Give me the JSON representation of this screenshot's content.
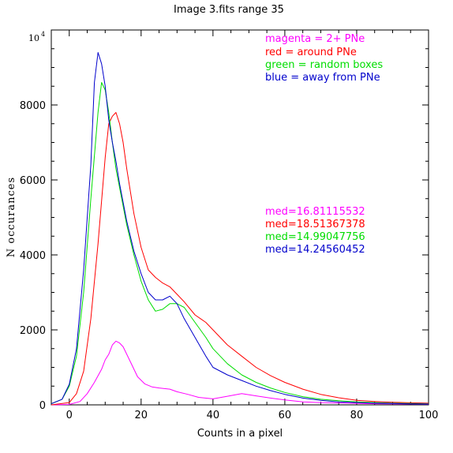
{
  "chart_data": {
    "type": "line",
    "title": "Image 3.fits    range 35",
    "xlabel": "Counts in a pixel",
    "ylabel": "N occurances",
    "xlim": [
      -5,
      100
    ],
    "ylim": [
      0,
      10000
    ],
    "y_exponent_label": "10",
    "y_exponent_power": "4",
    "x_ticks": [
      0,
      20,
      40,
      60,
      80,
      100
    ],
    "y_ticks": [
      0,
      2000,
      4000,
      6000,
      8000
    ],
    "grid": false,
    "legend_placement": "top-right",
    "legend": [
      {
        "text": "magenta = 2+ PNe",
        "color": "#ff00ff"
      },
      {
        "text": "red = around PNe",
        "color": "#ff0000"
      },
      {
        "text": "green = random boxes",
        "color": "#00dd00"
      },
      {
        "text": "blue = away from PNe",
        "color": "#0000cc"
      }
    ],
    "medians": [
      {
        "text": "med=16.81115532",
        "color": "#ff00ff"
      },
      {
        "text": "med=18.51367378",
        "color": "#ff0000"
      },
      {
        "text": "med=14.99047756",
        "color": "#00dd00"
      },
      {
        "text": "med=14.24560452",
        "color": "#0000cc"
      }
    ],
    "series": [
      {
        "color": "#ff00ff",
        "x": [
          -5,
          0,
          3,
          5,
          7,
          9,
          10,
          11,
          12,
          13,
          14,
          15,
          17,
          19,
          21,
          23,
          25,
          28,
          30,
          33,
          36,
          40,
          44,
          48,
          52,
          56,
          60,
          65,
          70,
          75,
          80,
          85,
          90,
          95,
          100
        ],
        "y": [
          0,
          10,
          90,
          300,
          600,
          950,
          1200,
          1350,
          1600,
          1700,
          1650,
          1550,
          1150,
          750,
          560,
          480,
          450,
          420,
          350,
          280,
          200,
          160,
          230,
          300,
          240,
          180,
          130,
          80,
          60,
          50,
          40,
          30,
          25,
          20,
          15
        ]
      },
      {
        "color": "#ff0000",
        "x": [
          -5,
          0,
          2,
          4,
          6,
          8,
          10,
          11,
          12,
          13,
          14,
          15,
          16,
          18,
          20,
          22,
          24,
          26,
          28,
          30,
          32,
          35,
          38,
          40,
          44,
          48,
          52,
          56,
          60,
          65,
          70,
          75,
          80,
          85,
          90,
          95,
          100
        ],
        "y": [
          0,
          60,
          300,
          900,
          2300,
          4300,
          6600,
          7500,
          7700,
          7800,
          7500,
          7000,
          6300,
          5100,
          4200,
          3600,
          3400,
          3250,
          3150,
          2950,
          2750,
          2400,
          2200,
          2000,
          1600,
          1300,
          1000,
          780,
          600,
          420,
          280,
          190,
          120,
          90,
          70,
          55,
          45
        ]
      },
      {
        "color": "#00dd00",
        "x": [
          -5,
          -2,
          0,
          2,
          4,
          6,
          8,
          9,
          10,
          11,
          12,
          13,
          14,
          16,
          18,
          20,
          22,
          24,
          26,
          28,
          30,
          32,
          35,
          38,
          40,
          44,
          48,
          52,
          56,
          60,
          65,
          70,
          75,
          80,
          85,
          90,
          95,
          100
        ],
        "y": [
          30,
          150,
          500,
          1300,
          3000,
          5500,
          7800,
          8600,
          8400,
          7800,
          7000,
          6300,
          5800,
          4800,
          4000,
          3300,
          2800,
          2500,
          2550,
          2700,
          2700,
          2600,
          2200,
          1800,
          1500,
          1100,
          800,
          600,
          450,
          330,
          220,
          150,
          110,
          80,
          60,
          45,
          35,
          25
        ]
      },
      {
        "color": "#0000cc",
        "x": [
          -5,
          -2,
          0,
          2,
          4,
          6,
          7,
          8,
          9,
          10,
          11,
          12,
          13,
          14,
          16,
          18,
          20,
          22,
          24,
          26,
          28,
          30,
          32,
          35,
          38,
          40,
          44,
          48,
          52,
          56,
          60,
          65,
          70,
          75,
          80,
          85,
          90,
          95,
          100
        ],
        "y": [
          30,
          150,
          550,
          1500,
          3600,
          6400,
          8600,
          9400,
          9100,
          8500,
          7600,
          7000,
          6500,
          5900,
          4900,
          4100,
          3500,
          3000,
          2800,
          2800,
          2900,
          2700,
          2300,
          1800,
          1300,
          1000,
          800,
          650,
          500,
          380,
          280,
          180,
          120,
          80,
          60,
          45,
          35,
          25,
          20
        ]
      }
    ]
  }
}
